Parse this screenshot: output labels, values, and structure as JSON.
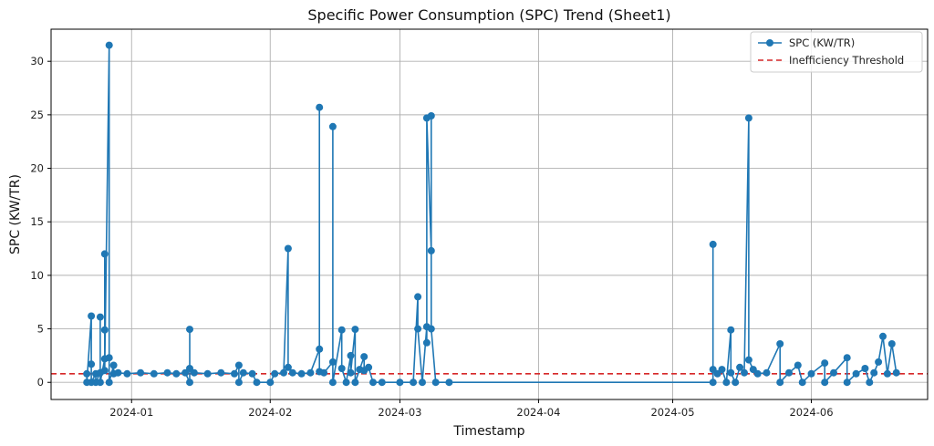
{
  "chart_data": {
    "type": "line",
    "title": "Specific Power Consumption (SPC) Trend (Sheet1)",
    "xlabel": "Timestamp",
    "ylabel": "SPC (KW/TR)",
    "ylim": [
      -1.6,
      33.0
    ],
    "xlim": [
      "2023-12-14",
      "2024-06-27"
    ],
    "x_ticks": [
      "2024-01-01",
      "2024-02-01",
      "2024-03-01",
      "2024-04-01",
      "2024-05-01",
      "2024-06-01"
    ],
    "x_tick_labels": [
      "2024-01",
      "2024-02",
      "2024-03",
      "2024-04",
      "2024-05",
      "2024-06"
    ],
    "y_ticks": [
      0,
      5,
      10,
      15,
      20,
      25,
      30
    ],
    "y_tick_labels": [
      "0",
      "5",
      "10",
      "15",
      "20",
      "25",
      "30"
    ],
    "grid": true,
    "legend_position": "top-right",
    "colors": {
      "series": "#1f77b4",
      "threshold": "#d62728",
      "grid": "#b0b0b0"
    },
    "series": [
      {
        "name": "SPC (KW/TR)",
        "points": [
          [
            "2023-12-22",
            0.8
          ],
          [
            "2023-12-22",
            0.0
          ],
          [
            "2023-12-23",
            6.2
          ],
          [
            "2023-12-23",
            1.7
          ],
          [
            "2023-12-23",
            0.0
          ],
          [
            "2023-12-24",
            0.8
          ],
          [
            "2023-12-24",
            0.0
          ],
          [
            "2023-12-25",
            0.9
          ],
          [
            "2023-12-25",
            6.1
          ],
          [
            "2023-12-25",
            0.0
          ],
          [
            "2023-12-26",
            2.2
          ],
          [
            "2023-12-26",
            12.0
          ],
          [
            "2023-12-26",
            4.9
          ],
          [
            "2023-12-26",
            1.1
          ],
          [
            "2023-12-27",
            31.5
          ],
          [
            "2023-12-27",
            2.3
          ],
          [
            "2023-12-27",
            0.0
          ],
          [
            "2023-12-28",
            1.6
          ],
          [
            "2023-12-28",
            0.8
          ],
          [
            "2023-12-29",
            0.9
          ],
          [
            "2023-12-31",
            0.8
          ],
          [
            "2024-01-03",
            0.9
          ],
          [
            "2024-01-06",
            0.8
          ],
          [
            "2024-01-09",
            0.9
          ],
          [
            "2024-01-11",
            0.8
          ],
          [
            "2024-01-13",
            0.9
          ],
          [
            "2024-01-14",
            0.0
          ],
          [
            "2024-01-14",
            4.95
          ],
          [
            "2024-01-14",
            1.3
          ],
          [
            "2024-01-15",
            0.9
          ],
          [
            "2024-01-18",
            0.8
          ],
          [
            "2024-01-21",
            0.9
          ],
          [
            "2024-01-24",
            0.8
          ],
          [
            "2024-01-25",
            1.6
          ],
          [
            "2024-01-25",
            0.0
          ],
          [
            "2024-01-26",
            0.9
          ],
          [
            "2024-01-28",
            0.8
          ],
          [
            "2024-01-29",
            0.0
          ],
          [
            "2024-02-01",
            0.0
          ],
          [
            "2024-02-02",
            0.8
          ],
          [
            "2024-02-04",
            0.9
          ],
          [
            "2024-02-05",
            12.5
          ],
          [
            "2024-02-05",
            1.4
          ],
          [
            "2024-02-06",
            0.9
          ],
          [
            "2024-02-08",
            0.8
          ],
          [
            "2024-02-10",
            0.9
          ],
          [
            "2024-02-12",
            3.1
          ],
          [
            "2024-02-12",
            25.7
          ],
          [
            "2024-02-12",
            1.0
          ],
          [
            "2024-02-13",
            0.9
          ],
          [
            "2024-02-15",
            1.9
          ],
          [
            "2024-02-15",
            23.9
          ],
          [
            "2024-02-15",
            0.0
          ],
          [
            "2024-02-17",
            4.9
          ],
          [
            "2024-02-17",
            1.3
          ],
          [
            "2024-02-18",
            0.0
          ],
          [
            "2024-02-19",
            2.5
          ],
          [
            "2024-02-19",
            0.9
          ],
          [
            "2024-02-20",
            4.95
          ],
          [
            "2024-02-20",
            0.0
          ],
          [
            "2024-02-21",
            1.2
          ],
          [
            "2024-02-22",
            2.4
          ],
          [
            "2024-02-22",
            1.1
          ],
          [
            "2024-02-23",
            1.4
          ],
          [
            "2024-02-24",
            0.0
          ],
          [
            "2024-02-26",
            0.0
          ],
          [
            "2024-03-01",
            0.0
          ],
          [
            "2024-03-04",
            0.0
          ],
          [
            "2024-03-05",
            8.0
          ],
          [
            "2024-03-05",
            5.0
          ],
          [
            "2024-03-06",
            0.0
          ],
          [
            "2024-03-07",
            5.2
          ],
          [
            "2024-03-07",
            3.7
          ],
          [
            "2024-03-07",
            24.7
          ],
          [
            "2024-03-08",
            12.3
          ],
          [
            "2024-03-08",
            24.9
          ],
          [
            "2024-03-08",
            5.0
          ],
          [
            "2024-03-09",
            0.0
          ],
          [
            "2024-03-12",
            0.0
          ],
          [
            "2024-05-10",
            0.0
          ],
          [
            "2024-05-10",
            12.9
          ],
          [
            "2024-05-10",
            1.2
          ],
          [
            "2024-05-11",
            0.8
          ],
          [
            "2024-05-12",
            1.2
          ],
          [
            "2024-05-13",
            0.0
          ],
          [
            "2024-05-14",
            4.9
          ],
          [
            "2024-05-14",
            0.9
          ],
          [
            "2024-05-15",
            0.0
          ],
          [
            "2024-05-16",
            1.4
          ],
          [
            "2024-05-17",
            0.9
          ],
          [
            "2024-05-18",
            24.7
          ],
          [
            "2024-05-18",
            2.1
          ],
          [
            "2024-05-19",
            1.2
          ],
          [
            "2024-05-20",
            0.8
          ],
          [
            "2024-05-22",
            0.9
          ],
          [
            "2024-05-25",
            3.6
          ],
          [
            "2024-05-25",
            0.0
          ],
          [
            "2024-05-27",
            0.9
          ],
          [
            "2024-05-29",
            1.6
          ],
          [
            "2024-05-30",
            0.0
          ],
          [
            "2024-06-01",
            0.8
          ],
          [
            "2024-06-04",
            1.8
          ],
          [
            "2024-06-04",
            0.0
          ],
          [
            "2024-06-06",
            0.9
          ],
          [
            "2024-06-09",
            2.3
          ],
          [
            "2024-06-09",
            0.0
          ],
          [
            "2024-06-11",
            0.8
          ],
          [
            "2024-06-13",
            1.3
          ],
          [
            "2024-06-14",
            0.0
          ],
          [
            "2024-06-15",
            0.9
          ],
          [
            "2024-06-16",
            1.9
          ],
          [
            "2024-06-17",
            4.3
          ],
          [
            "2024-06-18",
            0.8
          ],
          [
            "2024-06-19",
            3.6
          ],
          [
            "2024-06-20",
            0.9
          ]
        ]
      },
      {
        "name": "Inefficiency Threshold",
        "style": "dashed",
        "y": 0.8
      }
    ]
  }
}
